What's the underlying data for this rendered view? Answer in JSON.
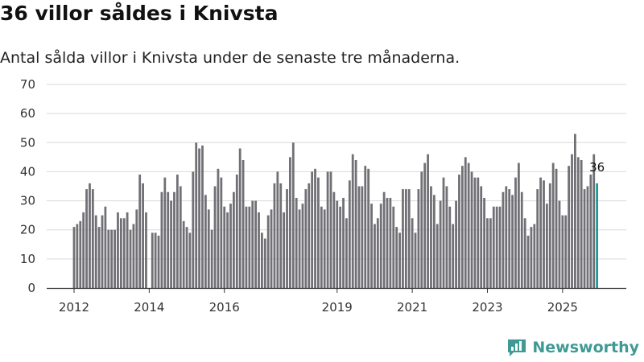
{
  "title": "36 villor såldes i Knivsta",
  "subtitle": "Antal sålda villor i Knivsta under de senaste tre månaderna.",
  "brand": {
    "name": "Newsworthy",
    "color": "#3f9a94"
  },
  "colors": {
    "bar": "#717075",
    "highlight": "#1e9a96",
    "grid": "#d9d9d9",
    "axis": "#333333"
  },
  "chart_data": {
    "type": "bar",
    "title": "36 villor såldes i Knivsta",
    "xlabel": "",
    "ylabel": "",
    "ylim": [
      0,
      70
    ],
    "y_ticks": [
      0,
      10,
      20,
      30,
      40,
      50,
      60,
      70
    ],
    "grid": true,
    "start": "2012-01",
    "x_tick_labels": [
      {
        "label": "2012",
        "index": 0
      },
      {
        "label": "2014",
        "index": 24
      },
      {
        "label": "2016",
        "index": 48
      },
      {
        "label": "2019",
        "index": 84
      },
      {
        "label": "2021",
        "index": 108
      },
      {
        "label": "2023",
        "index": 132
      },
      {
        "label": "2025",
        "index": 156
      }
    ],
    "values": [
      21,
      22,
      23,
      26,
      34,
      36,
      34,
      25,
      21,
      25,
      28,
      20,
      20,
      20,
      26,
      24,
      24,
      26,
      20,
      22,
      27,
      39,
      36,
      26,
      0,
      19,
      19,
      18,
      33,
      38,
      33,
      30,
      33,
      39,
      35,
      23,
      21,
      19,
      40,
      50,
      48,
      49,
      32,
      27,
      20,
      35,
      41,
      38,
      28,
      26,
      29,
      33,
      39,
      48,
      44,
      28,
      28,
      30,
      30,
      26,
      19,
      17,
      25,
      27,
      36,
      40,
      36,
      26,
      34,
      45,
      50,
      31,
      27,
      29,
      34,
      36,
      40,
      41,
      38,
      28,
      27,
      40,
      40,
      33,
      30,
      28,
      31,
      24,
      37,
      46,
      44,
      35,
      35,
      42,
      41,
      29,
      22,
      24,
      29,
      33,
      31,
      31,
      28,
      21,
      19,
      34,
      34,
      34,
      24,
      19,
      34,
      40,
      43,
      46,
      35,
      32,
      22,
      30,
      38,
      35,
      28,
      22,
      30,
      39,
      42,
      45,
      43,
      40,
      38,
      38,
      35,
      31,
      24,
      24,
      28,
      28,
      28,
      33,
      35,
      34,
      32,
      38,
      43,
      33,
      24,
      18,
      21,
      22,
      34,
      38,
      37,
      29,
      36,
      43,
      41,
      30,
      25,
      25,
      42,
      46,
      53,
      45,
      44,
      34,
      35,
      39,
      46,
      36
    ],
    "highlight_index": 167,
    "highlight_label": "36"
  }
}
